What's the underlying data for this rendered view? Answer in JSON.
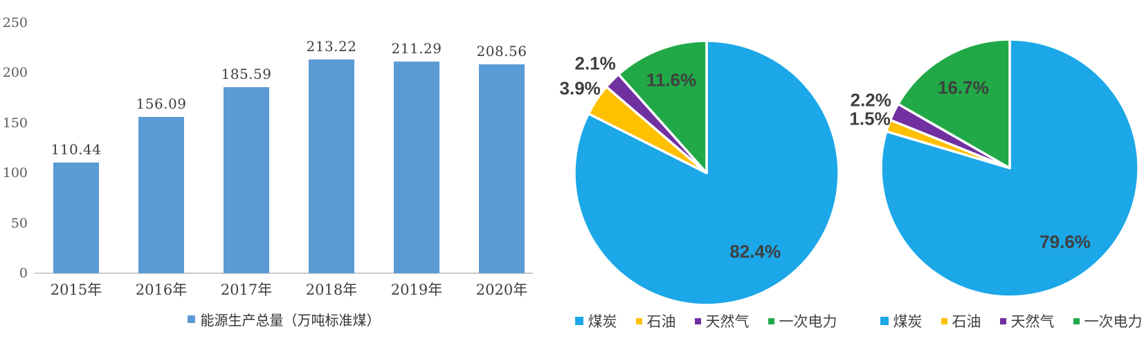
{
  "figure": {
    "background": "#FFFFFF"
  },
  "chart_data": [
    {
      "id": "energy-production-bar",
      "type": "bar",
      "categories": [
        "2015年",
        "2016年",
        "2017年",
        "2018年",
        "2019年",
        "2020年"
      ],
      "values": [
        110.44,
        156.09,
        185.59,
        213.22,
        211.29,
        208.56
      ],
      "value_labels": [
        "110.44",
        "156.09",
        "185.59",
        "213.22",
        "211.29",
        "208.56"
      ],
      "legend": "能源生产总量（万吨标准煤）",
      "xlabel": "",
      "ylabel": "",
      "ylim": [
        0,
        250
      ],
      "yticks": [
        0,
        50,
        100,
        150,
        200,
        250
      ],
      "grid": false,
      "legend_position": "bottom",
      "bar_color": "#5B9BD5",
      "axis_color": "#C9C9C9",
      "tick_color": "#595959",
      "label_color": "#3F3F3F"
    },
    {
      "id": "energy-mix-pie-left",
      "type": "pie",
      "labels": [
        "煤炭",
        "石油",
        "天然气",
        "一次电力"
      ],
      "values": [
        82.4,
        3.9,
        2.1,
        11.6
      ],
      "percent_labels": [
        "82.4%",
        "3.9%",
        "2.1%",
        "11.6%"
      ],
      "colors": [
        "#1BA7E8",
        "#FFC000",
        "#7030A0",
        "#21A947"
      ],
      "start_angle": 0,
      "direction": "clockwise",
      "legend_position": "bottom",
      "label_color": "#3F3F3F"
    },
    {
      "id": "energy-mix-pie-right",
      "type": "pie",
      "labels": [
        "煤炭",
        "石油",
        "天然气",
        "一次电力"
      ],
      "values": [
        79.6,
        1.5,
        2.2,
        16.7
      ],
      "percent_labels": [
        "79.6%",
        "1.5%",
        "2.2%",
        "16.7%"
      ],
      "colors": [
        "#1BA7E8",
        "#FFC000",
        "#7030A0",
        "#21A947"
      ],
      "start_angle": 0,
      "direction": "clockwise",
      "legend_position": "bottom",
      "label_color": "#3F3F3F"
    }
  ]
}
